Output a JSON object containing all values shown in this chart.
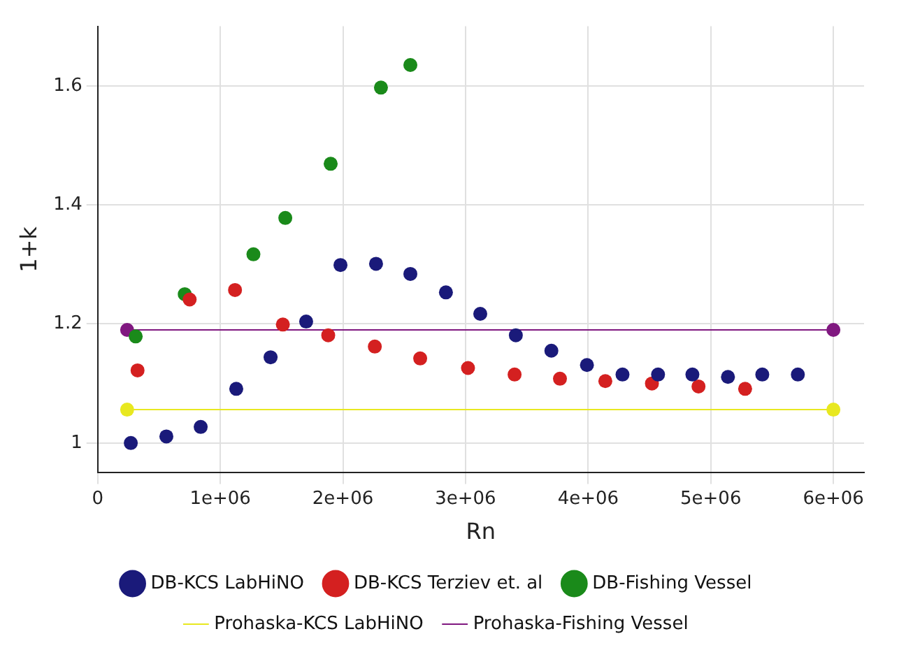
{
  "chart_data": {
    "type": "scatter",
    "xlabel": "Rn",
    "ylabel": "1+k",
    "xlim": [
      0,
      6250000
    ],
    "ylim": [
      0.95,
      1.7
    ],
    "xticks": [
      0,
      {
        "value": 1000000,
        "label": "1e+06"
      },
      {
        "value": 2000000,
        "label": "2e+06"
      },
      {
        "value": 3000000,
        "label": "3e+06"
      },
      {
        "value": 4000000,
        "label": "4e+06"
      },
      {
        "value": 5000000,
        "label": "5e+06"
      },
      {
        "value": 6000000,
        "label": "6e+06"
      }
    ],
    "yticks": [
      1,
      1.2,
      1.4,
      1.6
    ],
    "grid": true,
    "legend": "bottom",
    "marker": "circle",
    "series": [
      {
        "name": "DB-KCS LabHiNO",
        "color": "#1a1a7a",
        "x": [
          270000,
          560000,
          840000,
          1130000,
          1410000,
          1700000,
          1980000,
          2270000,
          2550000,
          2840000,
          3120000,
          3410000,
          3700000,
          3990000,
          4280000,
          4570000,
          4850000,
          5140000,
          5420000,
          5710000
        ],
        "values": [
          1.0,
          1.011,
          1.027,
          1.091,
          1.144,
          1.204,
          1.299,
          1.301,
          1.284,
          1.253,
          1.217,
          1.181,
          1.155,
          1.131,
          1.115,
          1.115,
          1.115,
          1.111,
          1.115,
          1.115
        ]
      },
      {
        "name": "DB-KCS Terziev et. al",
        "color": "#d42020",
        "x": [
          325000,
          750000,
          1120000,
          1510000,
          1880000,
          2260000,
          2630000,
          3020000,
          3400000,
          3770000,
          4140000,
          4520000,
          4900000,
          5280000
        ],
        "values": [
          1.122,
          1.241,
          1.257,
          1.199,
          1.181,
          1.162,
          1.142,
          1.126,
          1.115,
          1.108,
          1.104,
          1.1,
          1.095,
          1.091
        ]
      },
      {
        "name": "DB-Fishing Vessel",
        "color": "#1a8a1a",
        "x": [
          310000,
          710000,
          1270000,
          1530000,
          1900000,
          2310000,
          2550000
        ],
        "values": [
          1.179,
          1.25,
          1.317,
          1.378,
          1.469,
          1.597,
          1.635
        ]
      },
      {
        "name": "Prohaska-KCS LabHiNO",
        "type": "line",
        "color": "#e8e820",
        "x": [
          240000,
          6000000
        ],
        "values": [
          1.056,
          1.056
        ]
      },
      {
        "name": "Prohaska-Fishing Vessel",
        "type": "line",
        "color": "#801880",
        "x": [
          240000,
          6000000
        ],
        "values": [
          1.19,
          1.19
        ]
      }
    ]
  }
}
